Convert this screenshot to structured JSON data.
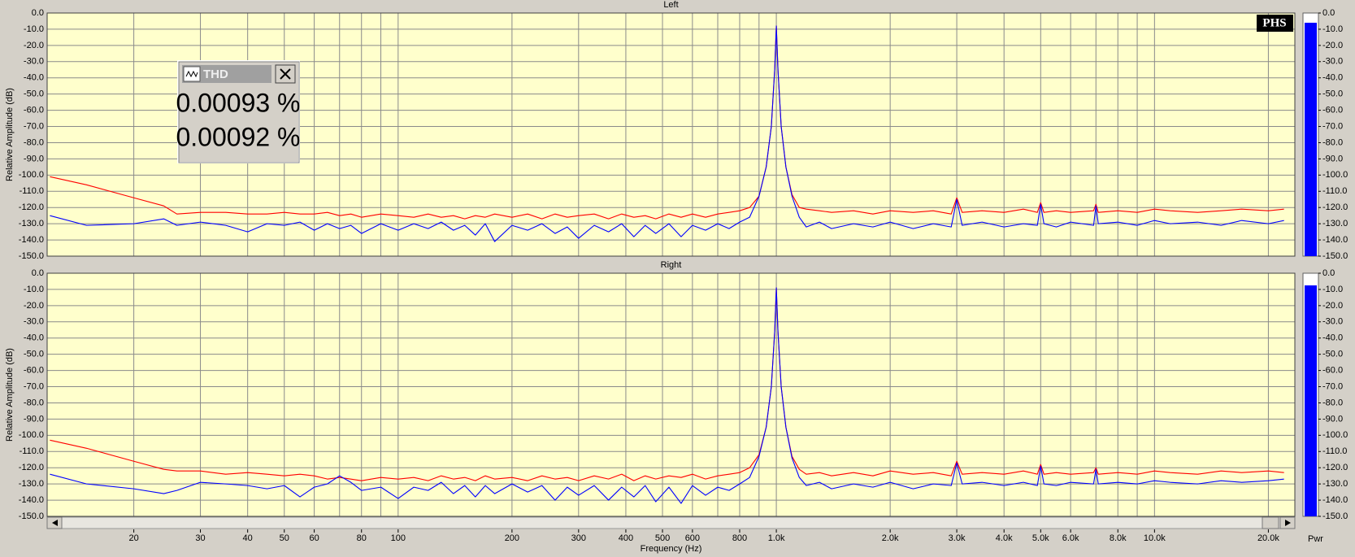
{
  "chart_data": [
    {
      "type": "line",
      "title": "Left",
      "ylabel": "Relative Amplitude (dB)",
      "xscale": "log",
      "grid": true,
      "xlim": [
        11.8,
        23500
      ],
      "ylim": [
        -150,
        0
      ],
      "yticks": [
        {
          "value": 0,
          "label": "0.0"
        },
        {
          "value": -10,
          "label": "-10.0"
        },
        {
          "value": -20,
          "label": "-20.0"
        },
        {
          "value": -30,
          "label": "-30.0"
        },
        {
          "value": -40,
          "label": "-40.0"
        },
        {
          "value": -50,
          "label": "-50.0"
        },
        {
          "value": -60,
          "label": "-60.0"
        },
        {
          "value": -70,
          "label": "-70.0"
        },
        {
          "value": -80,
          "label": "-80.0"
        },
        {
          "value": -90,
          "label": "-90.0"
        },
        {
          "value": -100,
          "label": "-100.0"
        },
        {
          "value": -110,
          "label": "-110.0"
        },
        {
          "value": -120,
          "label": "-120.0"
        },
        {
          "value": -130,
          "label": "-130.0"
        },
        {
          "value": -140,
          "label": "-140.0"
        },
        {
          "value": -150,
          "label": "-150.0"
        }
      ],
      "xgrid": [
        20,
        30,
        40,
        50,
        60,
        70,
        80,
        90,
        100,
        200,
        300,
        400,
        500,
        600,
        700,
        800,
        900,
        1000,
        2000,
        3000,
        4000,
        5000,
        6000,
        7000,
        8000,
        9000,
        10000,
        20000
      ],
      "meter_level": -6,
      "meter_color": "#0000ff",
      "x": [
        12,
        15,
        20,
        24,
        26,
        30,
        35,
        40,
        45,
        50,
        55,
        60,
        65,
        70,
        75,
        80,
        90,
        100,
        110,
        120,
        130,
        140,
        150,
        160,
        170,
        180,
        200,
        220,
        240,
        260,
        280,
        300,
        330,
        360,
        390,
        420,
        450,
        480,
        520,
        560,
        600,
        650,
        700,
        750,
        800,
        850,
        900,
        940,
        970,
        990,
        1000,
        1010,
        1030,
        1060,
        1100,
        1150,
        1200,
        1300,
        1400,
        1600,
        1800,
        2000,
        2300,
        2600,
        2900,
        3000,
        3100,
        3500,
        4000,
        4500,
        4900,
        5000,
        5100,
        5500,
        6000,
        6900,
        7000,
        7100,
        8000,
        9000,
        10000,
        11000,
        13000,
        15000,
        17000,
        20000,
        22000
      ],
      "series": [
        {
          "color": "#ff0000",
          "values": [
            -101,
            -106,
            -114,
            -119,
            -124,
            -123,
            -123,
            -124,
            -124,
            -123,
            -124,
            -124,
            -123,
            -125,
            -124,
            -126,
            -124,
            -125,
            -126,
            -124,
            -126,
            -125,
            -127,
            -125,
            -126,
            -124,
            -126,
            -124,
            -127,
            -124,
            -126,
            -125,
            -124,
            -127,
            -124,
            -126,
            -125,
            -127,
            -124,
            -126,
            -124,
            -126,
            -124,
            -123,
            -122,
            -120,
            -113,
            -95,
            -70,
            -35,
            -8,
            -35,
            -70,
            -95,
            -112,
            -120,
            -121,
            -122,
            -123,
            -122,
            -124,
            -122,
            -123,
            -122,
            -124,
            -114,
            -123,
            -122,
            -123,
            -121,
            -123,
            -117,
            -123,
            -122,
            -123,
            -122,
            -118,
            -123,
            -122,
            -123,
            -121,
            -122,
            -123,
            -122,
            -121,
            -122,
            -121
          ]
        },
        {
          "color": "#0000ff",
          "values": [
            -125,
            -131,
            -130,
            -127,
            -131,
            -129,
            -131,
            -135,
            -130,
            -131,
            -129,
            -134,
            -130,
            -133,
            -131,
            -136,
            -130,
            -134,
            -130,
            -133,
            -129,
            -134,
            -131,
            -137,
            -130,
            -141,
            -131,
            -134,
            -130,
            -136,
            -132,
            -139,
            -131,
            -135,
            -130,
            -138,
            -131,
            -136,
            -130,
            -138,
            -131,
            -134,
            -130,
            -133,
            -129,
            -126,
            -113,
            -95,
            -70,
            -35,
            -8,
            -35,
            -70,
            -95,
            -113,
            -126,
            -132,
            -129,
            -133,
            -130,
            -132,
            -129,
            -133,
            -130,
            -132,
            -115,
            -131,
            -129,
            -132,
            -130,
            -131,
            -118,
            -130,
            -132,
            -129,
            -131,
            -119,
            -130,
            -129,
            -131,
            -128,
            -130,
            -129,
            -131,
            -128,
            -130,
            -128
          ]
        }
      ]
    },
    {
      "type": "line",
      "title": "Right",
      "ylabel": "Relative Amplitude (dB)",
      "xlabel": "Frequency (Hz)",
      "xscale": "log",
      "grid": true,
      "xlim": [
        11.8,
        23500
      ],
      "ylim": [
        -150,
        0
      ],
      "yticks": [
        {
          "value": 0,
          "label": "0.0"
        },
        {
          "value": -10,
          "label": "-10.0"
        },
        {
          "value": -20,
          "label": "-20.0"
        },
        {
          "value": -30,
          "label": "-30.0"
        },
        {
          "value": -40,
          "label": "-40.0"
        },
        {
          "value": -50,
          "label": "-50.0"
        },
        {
          "value": -60,
          "label": "-60.0"
        },
        {
          "value": -70,
          "label": "-70.0"
        },
        {
          "value": -80,
          "label": "-80.0"
        },
        {
          "value": -90,
          "label": "-90.0"
        },
        {
          "value": -100,
          "label": "-100.0"
        },
        {
          "value": -110,
          "label": "-110.0"
        },
        {
          "value": -120,
          "label": "-120.0"
        },
        {
          "value": -130,
          "label": "-130.0"
        },
        {
          "value": -140,
          "label": "-140.0"
        },
        {
          "value": -150,
          "label": "-150.0"
        }
      ],
      "xgrid": [
        20,
        30,
        40,
        50,
        60,
        70,
        80,
        90,
        100,
        200,
        300,
        400,
        500,
        600,
        700,
        800,
        900,
        1000,
        2000,
        3000,
        4000,
        5000,
        6000,
        7000,
        8000,
        9000,
        10000,
        20000
      ],
      "xticks": [
        20,
        30,
        40,
        50,
        60,
        80,
        100,
        200,
        300,
        400,
        500,
        600,
        800,
        {
          "value": 1000,
          "label": "1.0k"
        },
        {
          "value": 2000,
          "label": "2.0k"
        },
        {
          "value": 3000,
          "label": "3.0k"
        },
        {
          "value": 4000,
          "label": "4.0k"
        },
        {
          "value": 5000,
          "label": "5.0k"
        },
        {
          "value": 6000,
          "label": "6.0k"
        },
        {
          "value": 8000,
          "label": "8.0k"
        },
        {
          "value": 10000,
          "label": "10.0k"
        },
        {
          "value": 20000,
          "label": "20.0k"
        }
      ],
      "meter_level": -7.5,
      "meter_color": "#0000ff",
      "meter_label": "Pwr",
      "x": [
        12,
        15,
        20,
        24,
        26,
        30,
        35,
        40,
        45,
        50,
        55,
        60,
        65,
        70,
        75,
        80,
        90,
        100,
        110,
        120,
        130,
        140,
        150,
        160,
        170,
        180,
        200,
        220,
        240,
        260,
        280,
        300,
        330,
        360,
        390,
        420,
        450,
        480,
        520,
        560,
        600,
        650,
        700,
        750,
        800,
        850,
        900,
        940,
        970,
        990,
        1000,
        1010,
        1030,
        1060,
        1100,
        1150,
        1200,
        1300,
        1400,
        1600,
        1800,
        2000,
        2300,
        2600,
        2900,
        3000,
        3100,
        3500,
        4000,
        4500,
        4900,
        5000,
        5100,
        5500,
        6000,
        6900,
        7000,
        7100,
        8000,
        9000,
        10000,
        11000,
        13000,
        15000,
        17000,
        20000,
        22000
      ],
      "series": [
        {
          "color": "#ff0000",
          "values": [
            -103,
            -108,
            -116,
            -121,
            -122,
            -122,
            -124,
            -123,
            -124,
            -125,
            -124,
            -125,
            -127,
            -126,
            -127,
            -128,
            -126,
            -127,
            -126,
            -128,
            -125,
            -127,
            -126,
            -128,
            -125,
            -127,
            -126,
            -128,
            -125,
            -127,
            -126,
            -128,
            -125,
            -127,
            -124,
            -128,
            -125,
            -127,
            -125,
            -126,
            -124,
            -127,
            -125,
            -124,
            -123,
            -120,
            -112,
            -95,
            -70,
            -36,
            -9,
            -36,
            -70,
            -95,
            -113,
            -121,
            -124,
            -123,
            -125,
            -123,
            -125,
            -122,
            -124,
            -123,
            -125,
            -116,
            -124,
            -123,
            -124,
            -122,
            -124,
            -118,
            -124,
            -123,
            -124,
            -123,
            -120,
            -124,
            -123,
            -124,
            -122,
            -123,
            -124,
            -122,
            -123,
            -122,
            -123
          ]
        },
        {
          "color": "#0000ff",
          "values": [
            -124,
            -130,
            -133,
            -136,
            -134,
            -129,
            -130,
            -131,
            -133,
            -131,
            -138,
            -132,
            -130,
            -125,
            -129,
            -134,
            -132,
            -139,
            -132,
            -134,
            -129,
            -136,
            -131,
            -138,
            -131,
            -136,
            -130,
            -135,
            -131,
            -140,
            -132,
            -137,
            -131,
            -140,
            -132,
            -138,
            -131,
            -141,
            -132,
            -142,
            -131,
            -137,
            -132,
            -134,
            -130,
            -126,
            -113,
            -95,
            -70,
            -36,
            -9,
            -36,
            -70,
            -95,
            -114,
            -126,
            -131,
            -129,
            -133,
            -130,
            -132,
            -129,
            -133,
            -130,
            -131,
            -117,
            -130,
            -129,
            -131,
            -129,
            -131,
            -119,
            -130,
            -131,
            -129,
            -130,
            -121,
            -130,
            -129,
            -130,
            -128,
            -129,
            -130,
            -128,
            -129,
            -128,
            -127
          ]
        }
      ]
    }
  ],
  "thd_window": {
    "title": "THD",
    "readings": [
      "0.00093 %",
      "0.00092 %"
    ]
  },
  "logo": "PHS"
}
